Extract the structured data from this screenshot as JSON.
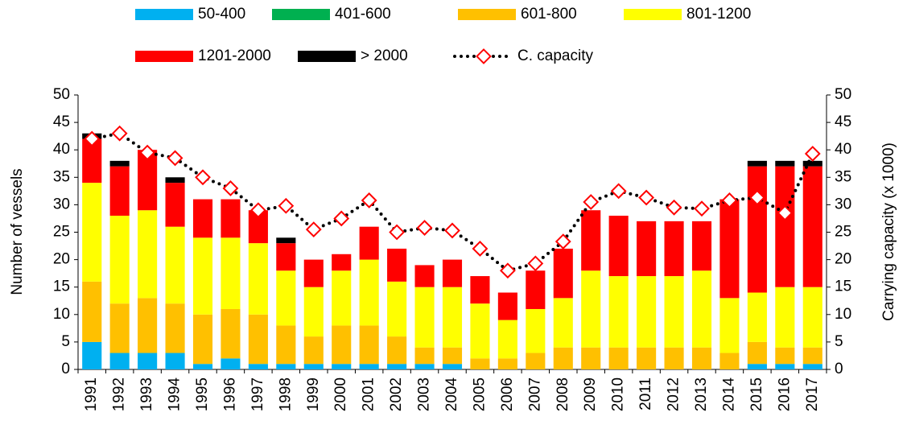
{
  "chart_data": {
    "type": "bar",
    "stacked": true,
    "categories": [
      "1991",
      "1992",
      "1993",
      "1994",
      "1995",
      "1996",
      "1997",
      "1998",
      "1999",
      "2000",
      "2001",
      "2002",
      "2003",
      "2004",
      "2005",
      "2006",
      "2007",
      "2008",
      "2009",
      "2010",
      "2011",
      "2012",
      "2013",
      "2014",
      "2015",
      "2016",
      "2017"
    ],
    "y_label": "Number of vessels",
    "y2_label": "Carrying capacity (x 1000)",
    "ylim": [
      0,
      50
    ],
    "yticks": [
      0,
      5,
      10,
      15,
      20,
      25,
      30,
      35,
      40,
      45,
      50
    ],
    "y2lim": [
      0,
      50
    ],
    "y2ticks": [
      0,
      5,
      10,
      15,
      20,
      25,
      30,
      35,
      40,
      45,
      50
    ],
    "series": [
      {
        "name": "50-400",
        "color": "#00b0f0",
        "values": [
          5,
          3,
          3,
          3,
          1,
          2,
          1,
          1,
          1,
          1,
          1,
          1,
          1,
          1,
          0,
          0,
          0,
          0,
          0,
          0,
          0,
          0,
          0,
          0,
          1,
          1,
          1
        ]
      },
      {
        "name": "401-600",
        "color": "#00b050",
        "values": [
          0,
          0,
          0,
          0,
          0,
          0,
          0,
          0,
          0,
          0,
          0,
          0,
          0,
          0,
          0,
          0,
          0,
          0,
          0,
          0,
          0,
          0,
          0,
          0,
          0,
          0,
          0
        ]
      },
      {
        "name": "601-800",
        "color": "#ffc000",
        "values": [
          11,
          9,
          10,
          9,
          9,
          9,
          9,
          7,
          5,
          7,
          7,
          5,
          3,
          3,
          2,
          2,
          3,
          4,
          4,
          4,
          4,
          4,
          4,
          3,
          4,
          3,
          3
        ]
      },
      {
        "name": "801-1200",
        "color": "#ffff00",
        "values": [
          18,
          16,
          16,
          14,
          14,
          13,
          13,
          10,
          9,
          10,
          12,
          10,
          11,
          11,
          10,
          7,
          8,
          9,
          14,
          13,
          13,
          13,
          14,
          10,
          9,
          11,
          11
        ]
      },
      {
        "name": "1201-2000",
        "color": "#ff0000",
        "values": [
          8,
          9,
          11,
          8,
          7,
          7,
          6,
          5,
          5,
          3,
          6,
          6,
          4,
          5,
          5,
          5,
          7,
          9,
          11,
          11,
          10,
          10,
          9,
          18,
          23,
          22,
          22
        ]
      },
      {
        "name": "> 2000",
        "color": "#000000",
        "values": [
          1,
          1,
          0,
          1,
          0,
          0,
          0,
          1,
          0,
          0,
          0,
          0,
          0,
          0,
          0,
          0,
          0,
          0,
          0,
          0,
          0,
          0,
          0,
          0,
          1,
          1,
          1
        ]
      },
      {
        "name": "C. capacity",
        "color": "#ff0000",
        "type": "line",
        "axis": "y2",
        "values": [
          42,
          43,
          39.5,
          38.5,
          35,
          33,
          29,
          29.8,
          25.5,
          27.5,
          30.8,
          25,
          25.8,
          25.3,
          22,
          18,
          19.3,
          23.3,
          30.5,
          32.5,
          31.3,
          29.5,
          29.3,
          30.8,
          31.3,
          28.5,
          39.3
        ]
      }
    ]
  }
}
